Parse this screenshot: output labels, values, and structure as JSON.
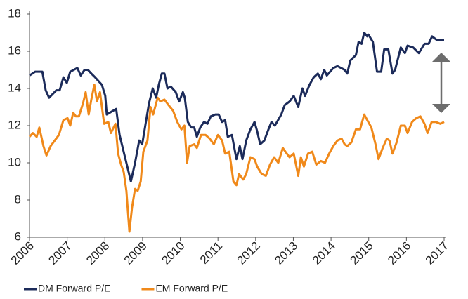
{
  "chart_data": {
    "type": "line",
    "xlim": [
      2006,
      2017
    ],
    "xticks": [
      2006,
      2007,
      2008,
      2009,
      2010,
      2011,
      2012,
      2013,
      2014,
      2015,
      2016,
      2017
    ],
    "ylim": [
      6,
      18
    ],
    "yticks": [
      6,
      8,
      10,
      12,
      14,
      16,
      18
    ],
    "series": [
      {
        "name": "DM Forward P/E",
        "color": "#1c2b5a",
        "x": [
          2006.0,
          2006.15,
          2006.34,
          2006.43,
          2006.52,
          2006.71,
          2006.8,
          2006.9,
          2006.99,
          2007.08,
          2007.27,
          2007.36,
          2007.46,
          2007.55,
          2007.64,
          2007.74,
          2007.92,
          2008.01,
          2008.05,
          2008.3,
          2008.39,
          2008.69,
          2008.8,
          2008.91,
          2008.99,
          2009.08,
          2009.17,
          2009.27,
          2009.36,
          2009.43,
          2009.51,
          2009.58,
          2009.66,
          2009.75,
          2009.88,
          2009.97,
          2010.07,
          2010.12,
          2010.2,
          2010.29,
          2010.37,
          2010.44,
          2010.53,
          2010.63,
          2010.72,
          2010.81,
          2010.93,
          2011.02,
          2011.11,
          2011.19,
          2011.26,
          2011.37,
          2011.49,
          2011.58,
          2011.65,
          2011.75,
          2011.86,
          2011.97,
          2012.04,
          2012.12,
          2012.23,
          2012.34,
          2012.42,
          2012.51,
          2012.68,
          2012.77,
          2012.9,
          2013.01,
          2013.13,
          2013.24,
          2013.31,
          2013.43,
          2013.54,
          2013.65,
          2013.73,
          2013.82,
          2013.89,
          2014.06,
          2014.17,
          2014.36,
          2014.43,
          2014.51,
          2014.66,
          2014.73,
          2014.81,
          2014.88,
          2014.96,
          2014.99,
          2015.11,
          2015.22,
          2015.33,
          2015.41,
          2015.52,
          2015.63,
          2015.7,
          2015.85,
          2015.96,
          2016.03,
          2016.18,
          2016.33,
          2016.48,
          2016.59,
          2016.68,
          2016.81,
          2017.0
        ],
        "values": [
          14.7,
          14.9,
          14.9,
          13.9,
          13.5,
          13.9,
          13.9,
          14.6,
          14.3,
          14.9,
          15.1,
          14.7,
          15.0,
          15.0,
          14.8,
          14.6,
          14.2,
          13.6,
          12.6,
          12.9,
          11.5,
          9.0,
          10.0,
          11.2,
          11.0,
          12.1,
          13.2,
          14.0,
          13.5,
          14.2,
          14.8,
          14.8,
          14.0,
          14.1,
          13.8,
          13.3,
          13.8,
          13.5,
          12.2,
          11.9,
          11.9,
          11.4,
          11.9,
          12.2,
          12.1,
          12.5,
          12.6,
          12.6,
          12.2,
          12.3,
          11.4,
          11.5,
          10.2,
          10.9,
          10.2,
          11.2,
          11.8,
          12.2,
          11.7,
          11.0,
          11.2,
          11.8,
          12.2,
          12.0,
          12.6,
          13.1,
          13.3,
          13.6,
          13.0,
          14.0,
          13.6,
          14.2,
          14.6,
          14.8,
          14.5,
          15.0,
          14.7,
          15.1,
          15.2,
          15.0,
          14.8,
          15.5,
          15.8,
          16.5,
          16.4,
          17.0,
          16.8,
          16.9,
          16.5,
          14.9,
          14.9,
          16.1,
          16.1,
          14.8,
          15.0,
          16.2,
          15.9,
          16.3,
          16.2,
          15.9,
          16.4,
          16.4,
          16.8,
          16.6,
          16.6
        ]
      },
      {
        "name": "EM Forward P/E",
        "color": "#f0891a",
        "x": [
          2006.0,
          2006.09,
          2006.19,
          2006.26,
          2006.37,
          2006.45,
          2006.56,
          2006.67,
          2006.78,
          2006.9,
          2007.01,
          2007.08,
          2007.16,
          2007.23,
          2007.31,
          2007.42,
          2007.49,
          2007.57,
          2007.64,
          2007.72,
          2007.79,
          2007.87,
          2007.98,
          2008.09,
          2008.16,
          2008.28,
          2008.35,
          2008.43,
          2008.5,
          2008.57,
          2008.65,
          2008.72,
          2008.8,
          2008.87,
          2008.95,
          2009.02,
          2009.13,
          2009.21,
          2009.28,
          2009.4,
          2009.47,
          2009.58,
          2009.69,
          2009.81,
          2009.92,
          2010.03,
          2010.11,
          2010.18,
          2010.25,
          2010.37,
          2010.44,
          2010.55,
          2010.67,
          2010.78,
          2010.89,
          2011.0,
          2011.11,
          2011.19,
          2011.3,
          2011.41,
          2011.49,
          2011.56,
          2011.67,
          2011.75,
          2011.86,
          2011.97,
          2012.04,
          2012.16,
          2012.27,
          2012.38,
          2012.49,
          2012.6,
          2012.72,
          2012.79,
          2012.9,
          2013.01,
          2013.13,
          2013.2,
          2013.28,
          2013.39,
          2013.5,
          2013.61,
          2013.73,
          2013.84,
          2013.95,
          2014.06,
          2014.17,
          2014.28,
          2014.36,
          2014.43,
          2014.54,
          2014.66,
          2014.77,
          2014.88,
          2014.96,
          2015.07,
          2015.18,
          2015.26,
          2015.37,
          2015.48,
          2015.55,
          2015.63,
          2015.74,
          2015.85,
          2015.96,
          2016.03,
          2016.15,
          2016.26,
          2016.37,
          2016.48,
          2016.56,
          2016.67,
          2016.78,
          2016.9,
          2017.0
        ],
        "values": [
          11.4,
          11.6,
          11.4,
          11.9,
          10.9,
          10.4,
          10.9,
          11.2,
          11.5,
          12.3,
          12.4,
          12.0,
          12.7,
          12.5,
          12.5,
          13.2,
          13.8,
          12.6,
          13.4,
          14.2,
          13.3,
          13.8,
          12.1,
          12.2,
          11.6,
          12.1,
          10.5,
          9.9,
          9.5,
          8.5,
          6.3,
          7.6,
          8.6,
          8.5,
          9.0,
          10.6,
          11.2,
          13.0,
          12.6,
          13.5,
          13.3,
          13.4,
          13.1,
          12.8,
          12.2,
          11.8,
          12.0,
          10.0,
          10.9,
          11.0,
          10.8,
          11.5,
          11.5,
          11.3,
          11.0,
          11.5,
          11.2,
          10.5,
          10.6,
          9.0,
          8.8,
          9.4,
          9.1,
          9.4,
          10.3,
          10.2,
          9.8,
          9.4,
          9.3,
          9.9,
          10.3,
          10.0,
          10.8,
          10.6,
          10.3,
          10.5,
          9.3,
          10.3,
          9.8,
          10.5,
          10.6,
          9.9,
          10.1,
          10.0,
          10.5,
          10.9,
          11.2,
          11.3,
          11.0,
          10.9,
          11.1,
          11.8,
          11.8,
          12.6,
          12.3,
          11.9,
          11.0,
          10.2,
          10.8,
          11.3,
          11.2,
          10.5,
          11.1,
          12.0,
          12.0,
          11.6,
          12.2,
          12.4,
          12.5,
          12.1,
          11.6,
          12.2,
          12.2,
          12.1,
          12.2
        ]
      }
    ]
  }
}
